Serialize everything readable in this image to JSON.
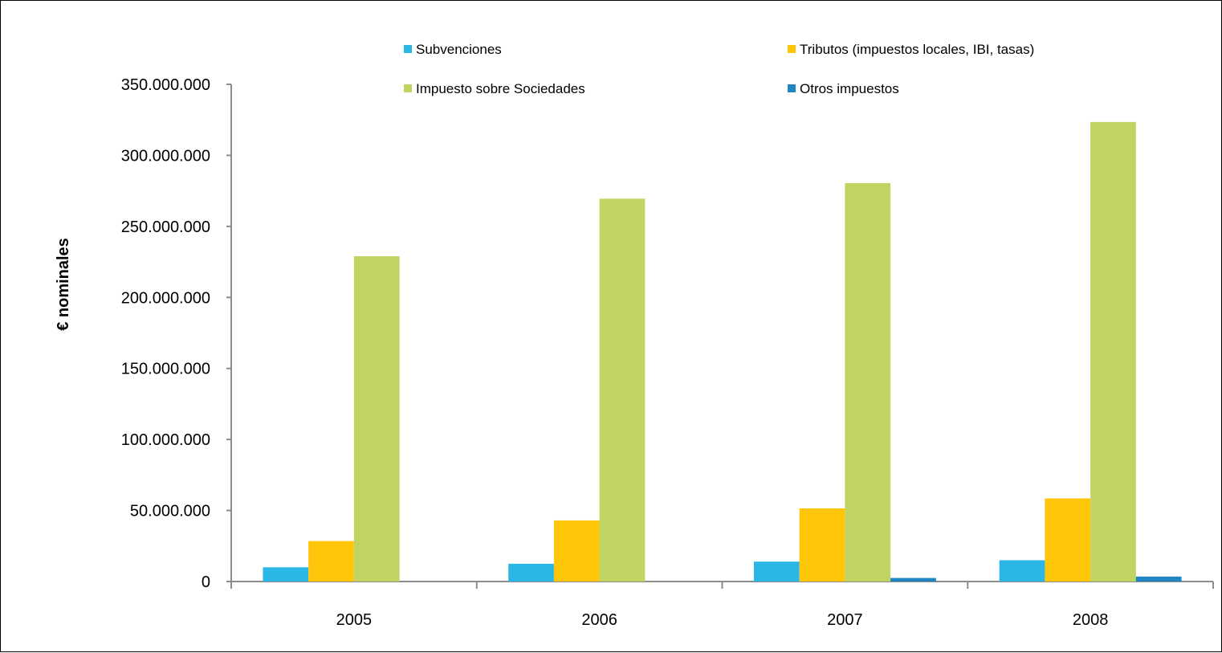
{
  "chart_data": {
    "type": "bar",
    "title": "",
    "xlabel": "",
    "ylabel": "€ nominales",
    "categories": [
      "2005",
      "2006",
      "2007",
      "2008"
    ],
    "ylim": [
      0,
      350000000
    ],
    "yticks": [
      0,
      50000000,
      100000000,
      150000000,
      200000000,
      250000000,
      300000000,
      350000000
    ],
    "ytick_labels": [
      "0",
      "50.000.000",
      "100.000.000",
      "150.000.000",
      "200.000.000",
      "250.000.000",
      "300.000.000",
      "350.000.000"
    ],
    "grid": false,
    "legend_position": "top",
    "series": [
      {
        "name": "Subvenciones",
        "color": "#2ab7e6",
        "values": [
          10000000,
          12500000,
          14000000,
          15000000
        ]
      },
      {
        "name": "Tributos (impuestos locales, IBI, tasas)",
        "color": "#ffc508",
        "values": [
          28500000,
          43000000,
          51500000,
          58500000
        ]
      },
      {
        "name": "Impuesto sobre Sociedades",
        "color": "#c0d462",
        "values": [
          229000000,
          269500000,
          280500000,
          323500000
        ]
      },
      {
        "name": "Otros impuestos",
        "color": "#1f86c3",
        "values": [
          0,
          0,
          2500000,
          3500000
        ]
      }
    ]
  }
}
